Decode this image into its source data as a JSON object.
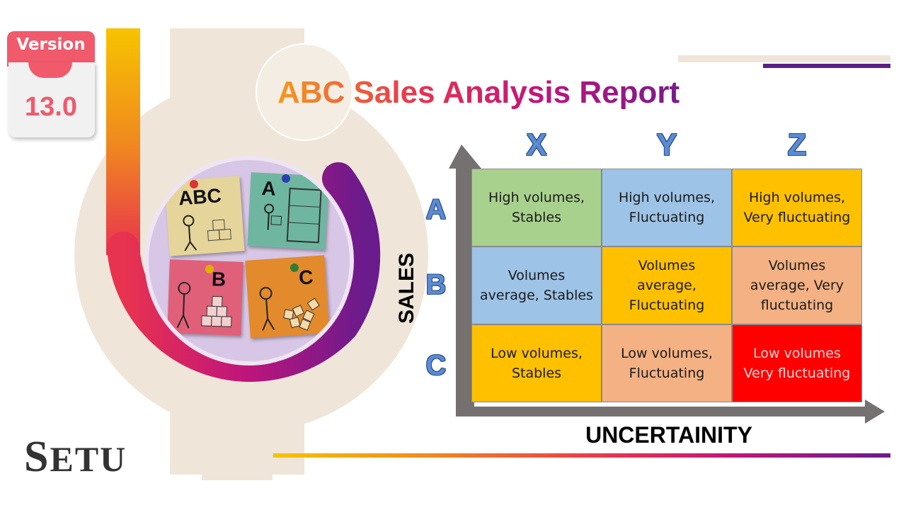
{
  "badge": {
    "label": "Version",
    "number": "13.0"
  },
  "title": "ABC Sales Analysis Report",
  "logo": {
    "first_letter": "S",
    "rest": "ETU"
  },
  "illustration": {
    "notes": [
      {
        "letter": "ABC",
        "color": "#e6d59a"
      },
      {
        "letter": "A",
        "color": "#6fb6a0"
      },
      {
        "letter": "B",
        "color": "#e0607a"
      },
      {
        "letter": "C",
        "color": "#e38a2c"
      }
    ]
  },
  "matrix": {
    "columns": [
      "X",
      "Y",
      "Z"
    ],
    "rows": [
      "A",
      "B",
      "C"
    ],
    "y_axis_label": "SALES",
    "x_axis_label": "UNCERTAINITY",
    "cells": [
      [
        {
          "text": "High volumes, Stables",
          "color": "#a9d18e"
        },
        {
          "text": "High volumes, Fluctuating",
          "color": "#9dc3e6"
        },
        {
          "text": "High volumes, Very fluctuating",
          "color": "#ffc000"
        }
      ],
      [
        {
          "text": "Volumes average, Stables",
          "color": "#9dc3e6"
        },
        {
          "text": "Volumes average, Fluctuating",
          "color": "#ffc000"
        },
        {
          "text": "Volumes average, Very fluctuating",
          "color": "#f4b183"
        }
      ],
      [
        {
          "text": "Low volumes, Stables",
          "color": "#ffc000"
        },
        {
          "text": "Low volumes, Fluctuating",
          "color": "#f4b183"
        },
        {
          "text": "Low volumes Very fluctuating",
          "color": "#ff0000"
        }
      ]
    ]
  },
  "colors": {
    "accent_purple": "#5a1f88",
    "accent_red": "#f05a6b",
    "axis_gray": "#767171"
  }
}
